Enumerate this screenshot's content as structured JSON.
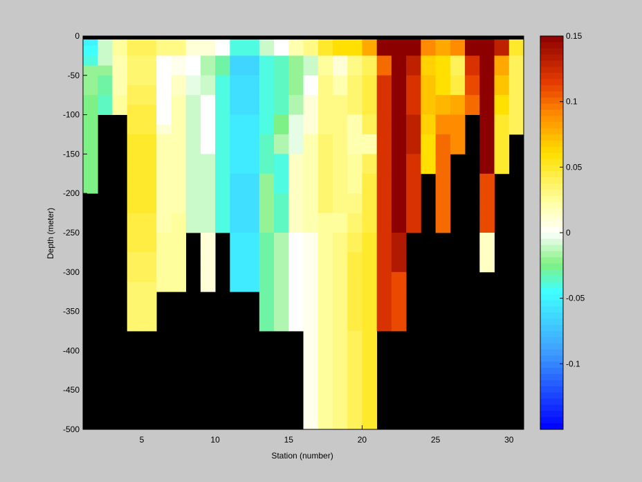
{
  "chart_data": {
    "type": "heatmap",
    "title": "",
    "xlabel": "Station (number)",
    "ylabel": "Depth (meter)",
    "xlim": [
      1,
      31
    ],
    "ylim": [
      -500,
      0
    ],
    "x_ticks": [
      "5",
      "10",
      "15",
      "20",
      "25",
      "30"
    ],
    "y_ticks": [
      "0",
      "-50",
      "-100",
      "-150",
      "-200",
      "-250",
      "-300",
      "-350",
      "-400",
      "-450",
      "-500"
    ],
    "colorbar": {
      "range": [
        -0.15,
        0.15
      ],
      "ticks": [
        "0.15",
        "0.1",
        "0.05",
        "0",
        "-0.05",
        "-0.1"
      ],
      "colormap": "blue-cyan-green-white-yellow-orange-darkred",
      "levels": 64
    },
    "grid": false,
    "nodata_color": "#000000",
    "cell_height_m": 12.5,
    "columns": [
      {
        "station": 1,
        "values": [
          -0.05,
          -0.045,
          -0.04,
          -0.02,
          -0.02,
          -0.02,
          -0.025,
          -0.025,
          -0.025,
          -0.025,
          -0.025,
          -0.025,
          -0.025,
          -0.025,
          -0.025,
          -0.025
        ]
      },
      {
        "station": 2,
        "values": [
          -0.01,
          -0.01,
          -0.01,
          -0.02,
          -0.03,
          -0.03,
          -0.035,
          -0.035
        ]
      },
      {
        "station": 3,
        "values": [
          0.025,
          0.025,
          0.02,
          0.02,
          0.02,
          0.02,
          0.025,
          0.025
        ]
      },
      {
        "station": 4,
        "values": [
          0.04,
          0.04,
          0.035,
          0.035,
          0.035,
          0.04,
          0.04,
          0.045,
          0.045,
          0.045,
          0.05,
          0.05,
          0.05,
          0.05,
          0.05,
          0.05,
          0.05,
          0.05,
          0.045,
          0.045,
          0.045,
          0.045,
          0.04,
          0.04,
          0.04,
          0.035,
          0.035,
          0.035,
          0.035,
          0.035
        ]
      },
      {
        "station": 5,
        "values": [
          0.04,
          0.04,
          0.035,
          0.035,
          0.035,
          0.04,
          0.04,
          0.045,
          0.045,
          0.045,
          0.05,
          0.05,
          0.05,
          0.05,
          0.05,
          0.05,
          0.05,
          0.05,
          0.045,
          0.045,
          0.045,
          0.045,
          0.04,
          0.04,
          0.04,
          0.035,
          0.035,
          0.035,
          0.035,
          0.035
        ]
      },
      {
        "station": 6,
        "values": [
          0.03,
          0.03,
          0.0,
          0.0,
          0.0,
          0.0,
          0.0,
          0.0,
          0.0,
          0.01,
          0.02,
          0.02,
          0.02,
          0.02,
          0.02,
          0.02,
          0.02,
          0.02,
          0.02,
          0.02,
          0.025,
          0.025,
          0.025,
          0.025,
          0.025,
          0.025
        ]
      },
      {
        "station": 7,
        "values": [
          0.03,
          0.03,
          0.005,
          0.005,
          0.015,
          0.015,
          0.02,
          0.02,
          0.02,
          0.02,
          0.02,
          0.02,
          0.02,
          0.02,
          0.02,
          0.02,
          0.02,
          0.02,
          0.025,
          0.025,
          0.025,
          0.025,
          0.025,
          0.025,
          0.025,
          0.025
        ]
      },
      {
        "station": 8,
        "values": [
          0.01,
          0.01,
          0.0,
          0.0,
          -0.005,
          -0.005,
          -0.01,
          -0.01,
          -0.01,
          -0.01,
          -0.01,
          -0.01,
          -0.01,
          -0.01,
          -0.01,
          -0.01,
          -0.01,
          -0.01,
          -0.01,
          -0.01
        ]
      },
      {
        "station": 9,
        "values": [
          0.01,
          0.01,
          -0.015,
          -0.015,
          -0.01,
          -0.01,
          0.0,
          0.0,
          0.0,
          0.0,
          0.0,
          0.0,
          -0.01,
          -0.01,
          -0.01,
          -0.01,
          -0.01,
          -0.01,
          -0.01,
          -0.01,
          0.01,
          0.01,
          0.01,
          0.01,
          0.01,
          0.01
        ]
      },
      {
        "station": 10,
        "values": [
          0.0,
          0.0,
          -0.03,
          -0.03,
          -0.04,
          -0.04,
          -0.04,
          -0.04,
          -0.04,
          -0.04,
          -0.04,
          -0.04,
          -0.04,
          -0.04,
          -0.04,
          -0.04,
          -0.04,
          -0.04,
          -0.04,
          -0.04
        ]
      },
      {
        "station": 11,
        "values": [
          -0.04,
          -0.04,
          -0.065,
          -0.065,
          -0.06,
          -0.06,
          -0.06,
          -0.06,
          -0.055,
          -0.055,
          -0.055,
          -0.055,
          -0.055,
          -0.055,
          -0.06,
          -0.06,
          -0.06,
          -0.06,
          -0.06,
          -0.06,
          -0.055,
          -0.055,
          -0.055,
          -0.055,
          -0.055,
          -0.055
        ]
      },
      {
        "station": 12,
        "values": [
          -0.04,
          -0.04,
          -0.065,
          -0.065,
          -0.06,
          -0.06,
          -0.06,
          -0.06,
          -0.055,
          -0.055,
          -0.055,
          -0.055,
          -0.055,
          -0.055,
          -0.06,
          -0.06,
          -0.06,
          -0.06,
          -0.06,
          -0.06,
          -0.055,
          -0.055,
          -0.055,
          -0.055,
          -0.055,
          -0.055
        ]
      },
      {
        "station": 13,
        "values": [
          -0.01,
          -0.01,
          -0.04,
          -0.04,
          -0.04,
          -0.04,
          -0.04,
          -0.04,
          -0.04,
          -0.04,
          -0.035,
          -0.035,
          -0.035,
          -0.035,
          -0.02,
          -0.02,
          -0.02,
          -0.02,
          -0.02,
          -0.02,
          -0.03,
          -0.03,
          -0.03,
          -0.03,
          -0.03,
          -0.03,
          -0.03,
          -0.03,
          -0.03,
          -0.03
        ]
      },
      {
        "station": 14,
        "values": [
          0.0,
          0.0,
          -0.035,
          -0.035,
          -0.035,
          -0.035,
          -0.035,
          -0.035,
          -0.025,
          -0.025,
          -0.015,
          -0.015,
          -0.04,
          -0.04,
          -0.04,
          -0.04,
          -0.035,
          -0.035,
          -0.035,
          -0.035,
          -0.015,
          -0.015,
          -0.015,
          -0.015,
          -0.015,
          -0.015,
          -0.015,
          -0.015,
          -0.015,
          -0.015
        ]
      },
      {
        "station": 15,
        "values": [
          0.02,
          0.02,
          -0.02,
          -0.02,
          -0.02,
          -0.02,
          -0.015,
          -0.015,
          -0.005,
          -0.005,
          -0.005,
          -0.005,
          0.015,
          0.015,
          0.015,
          0.015,
          0.015,
          0.015,
          0.015,
          0.015,
          0.0,
          0.0,
          0.0,
          0.0,
          0.0,
          0.0,
          0.0,
          0.0,
          0.0,
          0.0
        ]
      },
      {
        "station": 16,
        "values": [
          0.03,
          0.03,
          -0.01,
          -0.01,
          0.0,
          0.0,
          0.01,
          0.01,
          0.01,
          0.01,
          0.02,
          0.02,
          0.02,
          0.02,
          0.02,
          0.02,
          0.02,
          0.02,
          0.02,
          0.02,
          0.005,
          0.005,
          0.005,
          0.005,
          0.005,
          0.005,
          0.005,
          0.005,
          0.005,
          0.005,
          0.005,
          0.005,
          0.005,
          0.005,
          0.005,
          0.005,
          0.005,
          0.005,
          0.005,
          0.005
        ]
      },
      {
        "station": 17,
        "values": [
          0.05,
          0.05,
          0.025,
          0.025,
          0.03,
          0.03,
          0.03,
          0.03,
          0.03,
          0.03,
          0.035,
          0.035,
          0.035,
          0.035,
          0.035,
          0.035,
          0.035,
          0.035,
          0.025,
          0.025,
          0.025,
          0.025,
          0.025,
          0.025,
          0.025,
          0.025,
          0.025,
          0.025,
          0.025,
          0.025,
          0.025,
          0.025,
          0.025,
          0.025,
          0.025,
          0.025,
          0.025,
          0.025,
          0.025,
          0.025
        ]
      },
      {
        "station": 18,
        "values": [
          0.06,
          0.06,
          0.01,
          0.01,
          0.02,
          0.02,
          0.03,
          0.03,
          0.03,
          0.03,
          0.03,
          0.03,
          0.03,
          0.03,
          0.03,
          0.03,
          0.03,
          0.03,
          0.025,
          0.025,
          0.03,
          0.03,
          0.03,
          0.03,
          0.03,
          0.03,
          0.03,
          0.03,
          0.03,
          0.03,
          0.03,
          0.03,
          0.03,
          0.03,
          0.03,
          0.03,
          0.03,
          0.03,
          0.03,
          0.03
        ]
      },
      {
        "station": 19,
        "values": [
          0.06,
          0.06,
          0.03,
          0.03,
          0.035,
          0.035,
          0.035,
          0.035,
          0.02,
          0.02,
          0.02,
          0.02,
          0.025,
          0.025,
          0.025,
          0.025,
          0.03,
          0.03,
          0.035,
          0.035,
          0.04,
          0.04,
          0.045,
          0.045,
          0.045,
          0.045,
          0.045,
          0.045,
          0.045,
          0.045,
          0.04,
          0.04,
          0.04,
          0.04,
          0.04,
          0.04,
          0.04,
          0.04,
          0.04,
          0.04
        ]
      },
      {
        "station": 20,
        "values": [
          0.08,
          0.08,
          0.04,
          0.04,
          0.045,
          0.045,
          0.045,
          0.045,
          0.04,
          0.04,
          0.02,
          0.02,
          0.04,
          0.04,
          0.045,
          0.045,
          0.045,
          0.045,
          0.045,
          0.045,
          0.05,
          0.05,
          0.05,
          0.05,
          0.05,
          0.05,
          0.05,
          0.05,
          0.05,
          0.05,
          0.05,
          0.05,
          0.05,
          0.05,
          0.05,
          0.05,
          0.05,
          0.05,
          0.05,
          0.05
        ]
      },
      {
        "station": 21,
        "values": [
          0.15,
          0.15,
          0.1,
          0.1,
          0.12,
          0.12,
          0.12,
          0.12,
          0.12,
          0.12,
          0.12,
          0.12,
          0.12,
          0.12,
          0.12,
          0.12,
          0.12,
          0.12,
          0.12,
          0.12,
          0.12,
          0.12,
          0.12,
          0.12,
          0.12,
          0.12,
          0.12,
          0.12,
          0.12,
          0.12
        ]
      },
      {
        "station": 22,
        "values": [
          0.15,
          0.15,
          0.15,
          0.15,
          0.15,
          0.15,
          0.15,
          0.15,
          0.15,
          0.15,
          0.15,
          0.15,
          0.15,
          0.15,
          0.15,
          0.15,
          0.15,
          0.15,
          0.15,
          0.15,
          0.135,
          0.135,
          0.135,
          0.135,
          0.11,
          0.11,
          0.11,
          0.11,
          0.11,
          0.11
        ]
      },
      {
        "station": 23,
        "values": [
          0.15,
          0.15,
          0.13,
          0.13,
          0.12,
          0.12,
          0.12,
          0.12,
          0.13,
          0.13,
          0.13,
          0.13,
          0.12,
          0.12,
          0.12,
          0.12,
          0.12,
          0.12,
          0.12,
          0.12
        ]
      },
      {
        "station": 24,
        "values": [
          0.09,
          0.09,
          0.065,
          0.065,
          0.07,
          0.07,
          0.07,
          0.07,
          0.065,
          0.065,
          0.06,
          0.06,
          0.06,
          0.06
        ]
      },
      {
        "station": 25,
        "values": [
          0.08,
          0.08,
          0.06,
          0.06,
          0.06,
          0.06,
          0.075,
          0.075,
          0.09,
          0.09,
          0.1,
          0.1,
          0.1,
          0.1,
          0.1,
          0.1,
          0.1,
          0.1,
          0.1,
          0.1
        ]
      },
      {
        "station": 26,
        "values": [
          0.09,
          0.09,
          0.04,
          0.04,
          0.045,
          0.045,
          0.08,
          0.08,
          0.09,
          0.09,
          0.09,
          0.09
        ]
      },
      {
        "station": 27,
        "values": [
          0.15,
          0.15,
          0.12,
          0.12,
          0.11,
          0.11,
          0.1,
          0.1
        ]
      },
      {
        "station": 28,
        "values": [
          0.15,
          0.15,
          0.15,
          0.15,
          0.15,
          0.15,
          0.15,
          0.15,
          0.15,
          0.15,
          0.15,
          0.15,
          0.15,
          0.15,
          0.11,
          0.11,
          0.11,
          0.11,
          0.11,
          0.11,
          0.015,
          0.015,
          0.015,
          0.015
        ]
      },
      {
        "station": 29,
        "values": [
          0.13,
          0.13,
          0.08,
          0.08,
          0.07,
          0.07,
          0.06,
          0.06,
          0.05,
          0.05,
          0.05,
          0.05,
          0.05,
          0.05
        ]
      },
      {
        "station": 30,
        "values": [
          0.05,
          0.05,
          0.04,
          0.04,
          0.04,
          0.04,
          0.04,
          0.04,
          0.04,
          0.04
        ]
      }
    ]
  }
}
